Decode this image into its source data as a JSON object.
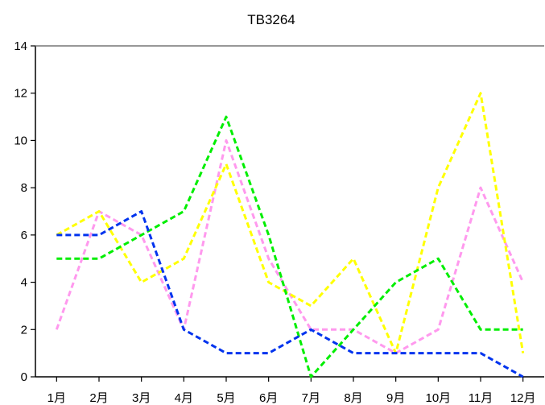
{
  "chart_data": {
    "type": "line",
    "title": "TB3264",
    "xlabel": "",
    "ylabel": "",
    "categories": [
      "1月",
      "2月",
      "3月",
      "4月",
      "5月",
      "6月",
      "7月",
      "8月",
      "9月",
      "10月",
      "11月",
      "12月"
    ],
    "ylim": [
      0,
      14
    ],
    "yticks": [
      0,
      2,
      4,
      6,
      8,
      10,
      12,
      14
    ],
    "grid": false,
    "legend": false,
    "line_style": "dashed",
    "series": [
      {
        "color": "#ff99ee",
        "values": [
          2,
          7,
          6,
          2,
          10,
          5,
          2,
          2,
          1,
          2,
          8,
          4
        ]
      },
      {
        "color": "#ffff00",
        "values": [
          6,
          7,
          4,
          5,
          9,
          4,
          3,
          5,
          1,
          8,
          12,
          1
        ]
      },
      {
        "color": "#00ee00",
        "values": [
          5,
          5,
          6,
          7,
          11,
          6,
          0,
          2,
          4,
          5,
          2,
          2
        ]
      },
      {
        "color": "#0033ee",
        "values": [
          6,
          6,
          7,
          2,
          1,
          1,
          2,
          1,
          1,
          1,
          1,
          0
        ]
      }
    ]
  }
}
